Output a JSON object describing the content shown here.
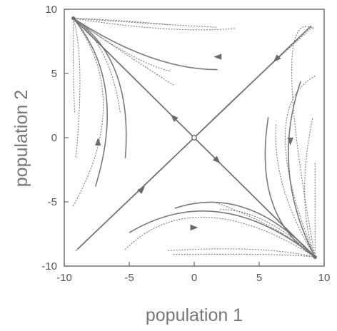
{
  "chart_data": {
    "type": "phase-portrait",
    "title": "",
    "xlabel": "population 1",
    "ylabel": "population 2",
    "xlim": [
      -10,
      10
    ],
    "ylim": [
      -10,
      10
    ],
    "xticks": [
      -10,
      -5,
      0,
      5,
      10
    ],
    "yticks": [
      -10,
      -5,
      0,
      5,
      10
    ],
    "xtick_labels": [
      "-10",
      "-5",
      "0",
      "5",
      "10"
    ],
    "ytick_labels": [
      "-10",
      "-5",
      "0",
      "5",
      "10"
    ],
    "grid": false,
    "legend": "none",
    "colors": {
      "curves": "#7a7a7a",
      "text": "#555555"
    },
    "fixed_points": [
      {
        "name": "saddle",
        "x": 0,
        "y": 0
      },
      {
        "name": "stable-node-upper-left",
        "x": -9.3,
        "y": 9.3
      },
      {
        "name": "stable-node-lower-right",
        "x": 9.3,
        "y": -9.3
      }
    ],
    "separatrices": [
      {
        "name": "stable-manifold",
        "points": [
          [
            -9.0,
            -8.7
          ],
          [
            0,
            0
          ],
          [
            9.0,
            8.7
          ]
        ],
        "direction": "toward-saddle"
      },
      {
        "name": "unstable-manifold",
        "points": [
          [
            -9.3,
            9.3
          ],
          [
            0,
            0
          ],
          [
            9.3,
            -9.3
          ]
        ],
        "direction": "away-from-saddle"
      }
    ],
    "trajectories": [
      {
        "style": "dotted",
        "points": [
          [
            -2.0,
            8.8
          ],
          [
            -5.5,
            9.1
          ],
          [
            -9.3,
            9.3
          ]
        ]
      },
      {
        "style": "dotted",
        "points": [
          [
            1.7,
            8.6
          ],
          [
            -3.5,
            8.9
          ],
          [
            -9.3,
            9.3
          ]
        ]
      },
      {
        "style": "dotted",
        "points": [
          [
            3.1,
            8.5
          ],
          [
            -2.5,
            8.5
          ],
          [
            -9.3,
            9.3
          ]
        ]
      },
      {
        "style": "solid",
        "arrow": true,
        "points": [
          [
            1.8,
            5.3
          ],
          [
            -3.5,
            6.3
          ],
          [
            -9.3,
            9.3
          ]
        ]
      },
      {
        "style": "dotted",
        "points": [
          [
            -1.9,
            5.2
          ],
          [
            -5.0,
            6.5
          ],
          [
            -9.3,
            9.3
          ]
        ]
      },
      {
        "style": "dotted",
        "points": [
          [
            -1.6,
            4.1
          ],
          [
            -6.0,
            7.0
          ],
          [
            -9.3,
            9.3
          ]
        ]
      },
      {
        "style": "dotted",
        "points": [
          [
            -9.2,
            2.0
          ],
          [
            -9.3,
            5.5
          ],
          [
            -9.3,
            9.3
          ]
        ]
      },
      {
        "style": "dotted",
        "points": [
          [
            -9.1,
            -1.5
          ],
          [
            -8.8,
            5.0
          ],
          [
            -9.3,
            9.3
          ]
        ]
      },
      {
        "style": "dotted",
        "points": [
          [
            -9.3,
            -5.3
          ],
          [
            -7.0,
            2.5
          ],
          [
            -9.3,
            9.3
          ]
        ]
      },
      {
        "style": "solid",
        "arrow": true,
        "points": [
          [
            -7.6,
            -3.8
          ],
          [
            -6.8,
            3.5
          ],
          [
            -9.3,
            9.3
          ]
        ]
      },
      {
        "style": "solid",
        "points": [
          [
            -5.3,
            -1.6
          ],
          [
            -6.0,
            5.0
          ],
          [
            -9.3,
            9.3
          ]
        ]
      },
      {
        "style": "dotted",
        "points": [
          [
            -5.7,
            2.0
          ],
          [
            -7.0,
            6.5
          ],
          [
            -9.3,
            9.3
          ]
        ]
      },
      {
        "style": "dotted",
        "points": [
          [
            -9.1,
            -8.8
          ],
          [
            -4.0,
            -3.9
          ],
          [
            0,
            0
          ]
        ]
      },
      {
        "style": "dotted",
        "points": [
          [
            9.1,
            8.6
          ],
          [
            4.0,
            3.9
          ],
          [
            0,
            0
          ]
        ]
      },
      {
        "style": "dotted",
        "points": [
          [
            -1.6,
            -9.1
          ],
          [
            5.5,
            -9.1
          ],
          [
            9.3,
            -9.3
          ]
        ]
      },
      {
        "style": "dotted",
        "points": [
          [
            -2.0,
            -8.8
          ],
          [
            4.5,
            -8.7
          ],
          [
            9.3,
            -9.3
          ]
        ]
      },
      {
        "style": "dotted",
        "points": [
          [
            -5.3,
            -8.7
          ],
          [
            1.0,
            -6.2
          ],
          [
            9.3,
            -9.3
          ]
        ]
      },
      {
        "style": "solid",
        "arrow": true,
        "points": [
          [
            -5.0,
            -7.4
          ],
          [
            2.0,
            -5.8
          ],
          [
            9.3,
            -9.3
          ]
        ]
      },
      {
        "style": "solid",
        "points": [
          [
            -1.5,
            -5.5
          ],
          [
            4.0,
            -5.5
          ],
          [
            9.3,
            -9.3
          ]
        ]
      },
      {
        "style": "dotted",
        "points": [
          [
            2.0,
            -5.6
          ],
          [
            5.5,
            -6.5
          ],
          [
            9.3,
            -9.3
          ]
        ]
      },
      {
        "style": "dotted",
        "points": [
          [
            1.5,
            -5.0
          ],
          [
            6.0,
            -7.0
          ],
          [
            9.3,
            -9.3
          ]
        ]
      },
      {
        "style": "dotted",
        "points": [
          [
            9.2,
            8.5
          ],
          [
            7.5,
            5.0
          ],
          [
            9.3,
            -9.3
          ]
        ]
      },
      {
        "style": "dotted",
        "points": [
          [
            9.3,
            4.8
          ],
          [
            7.0,
            0.0
          ],
          [
            9.3,
            -9.3
          ]
        ]
      },
      {
        "style": "solid",
        "arrow": true,
        "points": [
          [
            8.2,
            4.4
          ],
          [
            7.3,
            -2.5
          ],
          [
            9.3,
            -9.3
          ]
        ]
      },
      {
        "style": "solid",
        "points": [
          [
            5.7,
            1.6
          ],
          [
            6.0,
            -5.0
          ],
          [
            9.3,
            -9.3
          ]
        ]
      },
      {
        "style": "dotted",
        "points": [
          [
            9.1,
            1.5
          ],
          [
            8.5,
            -4.5
          ],
          [
            9.3,
            -9.3
          ]
        ]
      },
      {
        "style": "dotted",
        "points": [
          [
            9.3,
            -2.0
          ],
          [
            9.3,
            -5.5
          ],
          [
            9.3,
            -9.3
          ]
        ]
      },
      {
        "style": "dotted",
        "points": [
          [
            6.3,
            1.0
          ],
          [
            6.9,
            -4.0
          ],
          [
            9.3,
            -9.3
          ]
        ]
      }
    ],
    "arrows": [
      {
        "x": -1.6,
        "y": 1.6,
        "dir": [
          -1,
          1
        ]
      },
      {
        "x": 1.8,
        "y": -1.8,
        "dir": [
          1,
          -1
        ]
      },
      {
        "x": -4.0,
        "y": -4.0,
        "dir": [
          1,
          1
        ]
      },
      {
        "x": 6.3,
        "y": 6.1,
        "dir": [
          -1,
          -1
        ]
      },
      {
        "x": 1.8,
        "y": 6.3,
        "dir": [
          -1,
          0
        ]
      },
      {
        "x": -7.4,
        "y": -0.3,
        "dir": [
          0,
          1
        ]
      },
      {
        "x": 7.4,
        "y": -0.3,
        "dir": [
          0,
          -1
        ]
      },
      {
        "x": 0.0,
        "y": -7.0,
        "dir": [
          1,
          0
        ]
      }
    ]
  }
}
